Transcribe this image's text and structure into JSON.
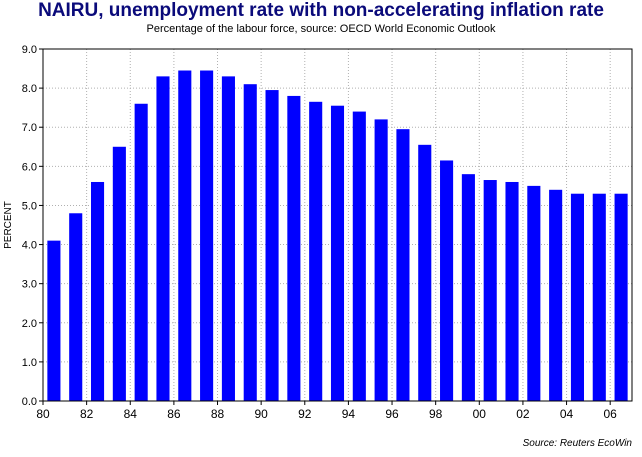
{
  "header": {
    "title": "NAIRU, unemployment rate with non-accelerating inflation rate",
    "subtitle": "Percentage of the labour force, source: OECD World Economic Outlook"
  },
  "footer": {
    "source": "Source: Reuters EcoWin"
  },
  "colors": {
    "bar": "#0000ff",
    "title": "#0a0a7a",
    "grid": "#b0b0b0"
  },
  "chart_data": {
    "type": "bar",
    "title": "NAIRU, unemployment rate with non-accelerating inflation rate",
    "subtitle": "Percentage of the labour force, source: OECD World Economic Outlook",
    "xlabel": "",
    "ylabel": "PERCENT",
    "ylim": [
      0,
      9
    ],
    "yticks": [
      "0.0",
      "1.0",
      "2.0",
      "3.0",
      "4.0",
      "5.0",
      "6.0",
      "7.0",
      "8.0",
      "9.0"
    ],
    "xlim": [
      1980,
      2007
    ],
    "xticks": [
      {
        "x": 1980,
        "label": "80"
      },
      {
        "x": 1982,
        "label": "82"
      },
      {
        "x": 1984,
        "label": "84"
      },
      {
        "x": 1986,
        "label": "86"
      },
      {
        "x": 1988,
        "label": "88"
      },
      {
        "x": 1990,
        "label": "90"
      },
      {
        "x": 1992,
        "label": "92"
      },
      {
        "x": 1994,
        "label": "94"
      },
      {
        "x": 1996,
        "label": "96"
      },
      {
        "x": 1998,
        "label": "98"
      },
      {
        "x": 2000,
        "label": "00"
      },
      {
        "x": 2002,
        "label": "02"
      },
      {
        "x": 2004,
        "label": "04"
      },
      {
        "x": 2006,
        "label": "06"
      }
    ],
    "grid": true,
    "x": [
      1980,
      1981,
      1982,
      1983,
      1984,
      1985,
      1986,
      1987,
      1988,
      1989,
      1990,
      1991,
      1992,
      1993,
      1994,
      1995,
      1996,
      1997,
      1998,
      1999,
      2000,
      2001,
      2002,
      2003,
      2004,
      2005,
      2006
    ],
    "values": [
      4.1,
      4.8,
      5.6,
      6.5,
      7.6,
      8.3,
      8.45,
      8.45,
      8.3,
      8.1,
      7.95,
      7.8,
      7.65,
      7.55,
      7.4,
      7.2,
      6.95,
      6.55,
      6.15,
      5.8,
      5.65,
      5.6,
      5.5,
      5.4,
      5.3,
      5.3,
      5.3
    ],
    "source": "Source: Reuters EcoWin"
  }
}
